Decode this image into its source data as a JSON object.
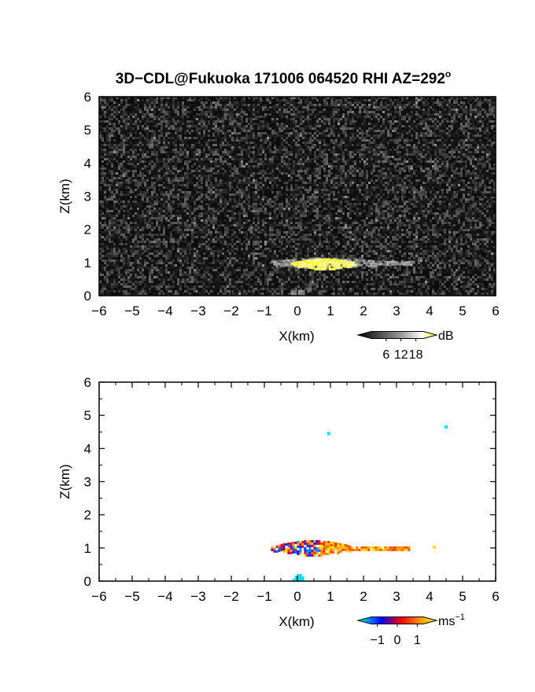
{
  "chart_data": [
    {
      "type": "heatmap",
      "panel": "reflectivity",
      "title": "3D−CDL@Fukuoka 171006 064520 RHI AZ=292",
      "title_superscript": "o",
      "xlabel": "X(km)",
      "ylabel": "Z(km)",
      "xlim": [
        -6,
        6
      ],
      "ylim": [
        0,
        6
      ],
      "xticks": [
        "−6",
        "−5",
        "−4",
        "−3",
        "−2",
        "−1",
        "0",
        "1",
        "2",
        "3",
        "4",
        "5",
        "6"
      ],
      "yticks": [
        "0",
        "1",
        "2",
        "3",
        "4",
        "5",
        "6"
      ],
      "background": "noise",
      "colorbar": {
        "unit": "dB",
        "ticks": [
          "6",
          "12",
          "18"
        ],
        "range": [
          0,
          21
        ],
        "colors": [
          "#000000",
          "#ffffff",
          "#ffff00"
        ]
      },
      "features": [
        {
          "x_range": [
            -0.8,
            3.5
          ],
          "z": 1.0,
          "value_range": [
            6,
            12
          ],
          "description": "weak echo layer"
        },
        {
          "x_range": [
            -0.2,
            1.8
          ],
          "z": 1.0,
          "value_range": [
            18,
            21
          ],
          "description": "strong echo core"
        },
        {
          "x_range": [
            -0.2,
            0.2
          ],
          "z": 0.1,
          "value_range": [
            6,
            10
          ],
          "description": "near-ground echo"
        }
      ]
    },
    {
      "type": "heatmap",
      "panel": "doppler_velocity",
      "xlabel": "X(km)",
      "ylabel": "Z(km)",
      "xlim": [
        -6,
        6
      ],
      "ylim": [
        0,
        6
      ],
      "xticks": [
        "−6",
        "−5",
        "−4",
        "−3",
        "−2",
        "−1",
        "0",
        "1",
        "2",
        "3",
        "4",
        "5",
        "6"
      ],
      "yticks": [
        "0",
        "1",
        "2",
        "3",
        "4",
        "5",
        "6"
      ],
      "background": "white",
      "colorbar": {
        "unit": "ms",
        "unit_exponent": "−1",
        "ticks": [
          "−1",
          "0",
          "1"
        ],
        "range": [
          -1.3,
          1.3
        ],
        "colors": [
          "#00ffff",
          "#0000ff",
          "#ff0000",
          "#ffff00"
        ]
      },
      "features": [
        {
          "x_range": [
            -0.8,
            3.4
          ],
          "z": 1.0,
          "value_range": [
            -1.0,
            1.2
          ],
          "description": "velocity layer"
        },
        {
          "x": 4.15,
          "z": 1.02,
          "value": 1.1
        },
        {
          "x": 0.95,
          "z": 4.45,
          "value": -1.2
        },
        {
          "x": 4.5,
          "z": 4.65,
          "value": -1.2
        },
        {
          "x_range": [
            -0.15,
            0.2
          ],
          "z": 0.08,
          "value": -1.2,
          "description": "near-ground echo"
        }
      ]
    }
  ]
}
